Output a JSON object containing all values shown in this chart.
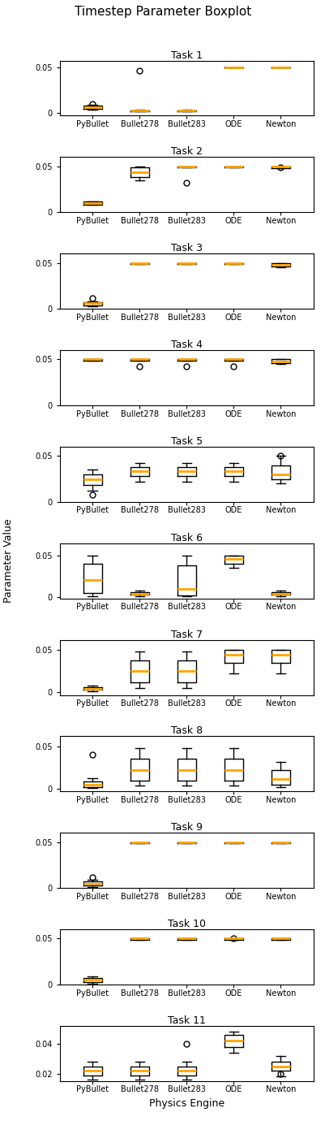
{
  "title": "Timestep Parameter Boxplot",
  "xlabel": "Physics Engine",
  "ylabel": "Parameter Value",
  "categories": [
    "PyBullet",
    "Bullet278",
    "Bullet283",
    "ODE",
    "Newton"
  ],
  "n_tasks": 11,
  "tasks": [
    {
      "name": "Task 1",
      "data": [
        {
          "q1": 0.005,
          "median": 0.006,
          "q3": 0.008,
          "whislo": 0.004,
          "whishi": 0.009,
          "fliers": [
            0.01
          ],
          "mean": null
        },
        {
          "q1": 0.002,
          "median": 0.003,
          "q3": 0.003,
          "whislo": 0.002,
          "whishi": 0.004,
          "fliers": [
            0.047
          ],
          "mean": null
        },
        {
          "q1": 0.002,
          "median": 0.003,
          "q3": 0.003,
          "whislo": 0.002,
          "whishi": 0.004,
          "fliers": [],
          "mean": null
        },
        {
          "q1": 0.05,
          "median": 0.05,
          "q3": 0.05,
          "whislo": 0.05,
          "whishi": 0.05,
          "fliers": [],
          "mean": null
        },
        {
          "q1": 0.05,
          "median": 0.05,
          "q3": 0.05,
          "whislo": 0.05,
          "whishi": 0.05,
          "fliers": [],
          "mean": null
        }
      ],
      "ylim": [
        -0.003,
        0.058
      ]
    },
    {
      "name": "Task 2",
      "data": [
        {
          "q1": 0.008,
          "median": 0.01,
          "q3": 0.012,
          "whislo": 0.008,
          "whishi": 0.012,
          "fliers": [],
          "mean": null
        },
        {
          "q1": 0.038,
          "median": 0.044,
          "q3": 0.049,
          "whislo": 0.035,
          "whishi": 0.05,
          "fliers": [],
          "mean": null
        },
        {
          "q1": 0.049,
          "median": 0.05,
          "q3": 0.05,
          "whislo": 0.049,
          "whishi": 0.05,
          "fliers": [
            0.032
          ],
          "mean": null
        },
        {
          "q1": 0.049,
          "median": 0.05,
          "q3": 0.05,
          "whislo": 0.049,
          "whishi": 0.05,
          "fliers": [],
          "mean": null
        },
        {
          "q1": 0.048,
          "median": 0.05,
          "q3": 0.05,
          "whislo": 0.048,
          "whishi": 0.05,
          "fliers": [
            0.049
          ],
          "mean": null
        }
      ],
      "ylim": [
        0.0,
        0.06
      ]
    },
    {
      "name": "Task 3",
      "data": [
        {
          "q1": 0.004,
          "median": 0.006,
          "q3": 0.007,
          "whislo": 0.003,
          "whishi": 0.008,
          "fliers": [
            0.012
          ],
          "mean": null
        },
        {
          "q1": 0.049,
          "median": 0.05,
          "q3": 0.05,
          "whislo": 0.049,
          "whishi": 0.05,
          "fliers": [],
          "mean": null
        },
        {
          "q1": 0.049,
          "median": 0.05,
          "q3": 0.05,
          "whislo": 0.049,
          "whishi": 0.05,
          "fliers": [],
          "mean": null
        },
        {
          "q1": 0.049,
          "median": 0.05,
          "q3": 0.05,
          "whislo": 0.049,
          "whishi": 0.05,
          "fliers": [],
          "mean": null
        },
        {
          "q1": 0.046,
          "median": 0.048,
          "q3": 0.05,
          "whislo": 0.045,
          "whishi": 0.05,
          "fliers": [],
          "mean": null
        }
      ],
      "ylim": [
        0.0,
        0.06
      ]
    },
    {
      "name": "Task 4",
      "data": [
        {
          "q1": 0.049,
          "median": 0.05,
          "q3": 0.05,
          "whislo": 0.049,
          "whishi": 0.05,
          "fliers": [],
          "mean": null
        },
        {
          "q1": 0.049,
          "median": 0.05,
          "q3": 0.05,
          "whislo": 0.049,
          "whishi": 0.05,
          "fliers": [
            0.042
          ],
          "mean": null
        },
        {
          "q1": 0.049,
          "median": 0.05,
          "q3": 0.05,
          "whislo": 0.049,
          "whishi": 0.05,
          "fliers": [
            0.042
          ],
          "mean": null
        },
        {
          "q1": 0.049,
          "median": 0.05,
          "q3": 0.05,
          "whislo": 0.049,
          "whishi": 0.05,
          "fliers": [
            0.042
          ],
          "mean": null
        },
        {
          "q1": 0.046,
          "median": 0.048,
          "q3": 0.05,
          "whislo": 0.045,
          "whishi": 0.05,
          "fliers": [],
          "mean": null
        }
      ],
      "ylim": [
        0.0,
        0.06
      ]
    },
    {
      "name": "Task 5",
      "data": [
        {
          "q1": 0.018,
          "median": 0.025,
          "q3": 0.03,
          "whislo": 0.012,
          "whishi": 0.035,
          "fliers": [
            0.008
          ],
          "mean": null
        },
        {
          "q1": 0.028,
          "median": 0.033,
          "q3": 0.038,
          "whislo": 0.022,
          "whishi": 0.042,
          "fliers": [],
          "mean": null
        },
        {
          "q1": 0.028,
          "median": 0.033,
          "q3": 0.038,
          "whislo": 0.022,
          "whishi": 0.042,
          "fliers": [],
          "mean": null
        },
        {
          "q1": 0.028,
          "median": 0.033,
          "q3": 0.038,
          "whislo": 0.022,
          "whishi": 0.042,
          "fliers": [],
          "mean": null
        },
        {
          "q1": 0.025,
          "median": 0.03,
          "q3": 0.04,
          "whislo": 0.02,
          "whishi": 0.05,
          "fliers": [
            0.05
          ],
          "mean": null
        }
      ],
      "ylim": [
        0.0,
        0.06
      ]
    },
    {
      "name": "Task 6",
      "data": [
        {
          "q1": 0.005,
          "median": 0.02,
          "q3": 0.04,
          "whislo": 0.001,
          "whishi": 0.05,
          "fliers": [],
          "mean": null
        },
        {
          "q1": 0.003,
          "median": 0.004,
          "q3": 0.006,
          "whislo": 0.001,
          "whishi": 0.008,
          "fliers": [],
          "mean": null
        },
        {
          "q1": 0.002,
          "median": 0.01,
          "q3": 0.038,
          "whislo": 0.001,
          "whishi": 0.05,
          "fliers": [],
          "mean": null
        },
        {
          "q1": 0.04,
          "median": 0.046,
          "q3": 0.05,
          "whislo": 0.035,
          "whishi": 0.05,
          "fliers": [],
          "mean": null
        },
        {
          "q1": 0.003,
          "median": 0.004,
          "q3": 0.006,
          "whislo": 0.001,
          "whishi": 0.008,
          "fliers": [],
          "mean": null
        }
      ],
      "ylim": [
        -0.002,
        0.065
      ]
    },
    {
      "name": "Task 7",
      "data": [
        {
          "q1": 0.003,
          "median": 0.004,
          "q3": 0.006,
          "whislo": 0.001,
          "whishi": 0.008,
          "fliers": [],
          "mean": null
        },
        {
          "q1": 0.012,
          "median": 0.025,
          "q3": 0.038,
          "whislo": 0.005,
          "whishi": 0.048,
          "fliers": [],
          "mean": null
        },
        {
          "q1": 0.012,
          "median": 0.025,
          "q3": 0.038,
          "whislo": 0.005,
          "whishi": 0.048,
          "fliers": [],
          "mean": null
        },
        {
          "q1": 0.035,
          "median": 0.044,
          "q3": 0.05,
          "whislo": 0.022,
          "whishi": 0.05,
          "fliers": [],
          "mean": null
        },
        {
          "q1": 0.035,
          "median": 0.044,
          "q3": 0.05,
          "whislo": 0.022,
          "whishi": 0.05,
          "fliers": [],
          "mean": null
        }
      ],
      "ylim": [
        -0.003,
        0.062
      ]
    },
    {
      "name": "Task 8",
      "data": [
        {
          "q1": 0.002,
          "median": 0.005,
          "q3": 0.009,
          "whislo": 0.001,
          "whishi": 0.013,
          "fliers": [
            0.04
          ],
          "mean": null
        },
        {
          "q1": 0.01,
          "median": 0.022,
          "q3": 0.036,
          "whislo": 0.004,
          "whishi": 0.048,
          "fliers": [],
          "mean": null
        },
        {
          "q1": 0.01,
          "median": 0.022,
          "q3": 0.036,
          "whislo": 0.004,
          "whishi": 0.048,
          "fliers": [],
          "mean": null
        },
        {
          "q1": 0.01,
          "median": 0.022,
          "q3": 0.036,
          "whislo": 0.004,
          "whishi": 0.048,
          "fliers": [],
          "mean": null
        },
        {
          "q1": 0.005,
          "median": 0.012,
          "q3": 0.022,
          "whislo": 0.002,
          "whishi": 0.032,
          "fliers": [],
          "mean": null
        }
      ],
      "ylim": [
        -0.003,
        0.062
      ]
    },
    {
      "name": "Task 9",
      "data": [
        {
          "q1": 0.003,
          "median": 0.005,
          "q3": 0.007,
          "whislo": 0.001,
          "whishi": 0.009,
          "fliers": [
            0.012
          ],
          "mean": null
        },
        {
          "q1": 0.049,
          "median": 0.05,
          "q3": 0.05,
          "whislo": 0.049,
          "whishi": 0.05,
          "fliers": [],
          "mean": null
        },
        {
          "q1": 0.049,
          "median": 0.05,
          "q3": 0.05,
          "whislo": 0.049,
          "whishi": 0.05,
          "fliers": [],
          "mean": null
        },
        {
          "q1": 0.049,
          "median": 0.05,
          "q3": 0.05,
          "whislo": 0.049,
          "whishi": 0.05,
          "fliers": [],
          "mean": null
        },
        {
          "q1": 0.049,
          "median": 0.05,
          "q3": 0.05,
          "whislo": 0.049,
          "whishi": 0.05,
          "fliers": [],
          "mean": null
        }
      ],
      "ylim": [
        0.0,
        0.06
      ]
    },
    {
      "name": "Task 10",
      "data": [
        {
          "q1": 0.003,
          "median": 0.005,
          "q3": 0.007,
          "whislo": 0.001,
          "whishi": 0.009,
          "fliers": [],
          "mean": null
        },
        {
          "q1": 0.049,
          "median": 0.05,
          "q3": 0.05,
          "whislo": 0.049,
          "whishi": 0.05,
          "fliers": [],
          "mean": null
        },
        {
          "q1": 0.049,
          "median": 0.05,
          "q3": 0.05,
          "whislo": 0.049,
          "whishi": 0.05,
          "fliers": [],
          "mean": null
        },
        {
          "q1": 0.049,
          "median": 0.05,
          "q3": 0.05,
          "whislo": 0.049,
          "whishi": 0.05,
          "fliers": [
            0.05
          ],
          "mean": null
        },
        {
          "q1": 0.049,
          "median": 0.05,
          "q3": 0.05,
          "whislo": 0.049,
          "whishi": 0.05,
          "fliers": [],
          "mean": null
        }
      ],
      "ylim": [
        0.0,
        0.06
      ]
    },
    {
      "name": "Task 11",
      "data": [
        {
          "q1": 0.019,
          "median": 0.022,
          "q3": 0.025,
          "whislo": 0.016,
          "whishi": 0.028,
          "fliers": [],
          "mean": null
        },
        {
          "q1": 0.019,
          "median": 0.022,
          "q3": 0.025,
          "whislo": 0.016,
          "whishi": 0.028,
          "fliers": [],
          "mean": null
        },
        {
          "q1": 0.019,
          "median": 0.022,
          "q3": 0.025,
          "whislo": 0.016,
          "whishi": 0.028,
          "fliers": [
            0.04
          ],
          "mean": null
        },
        {
          "q1": 0.038,
          "median": 0.042,
          "q3": 0.046,
          "whislo": 0.034,
          "whishi": 0.048,
          "fliers": [],
          "mean": null
        },
        {
          "q1": 0.022,
          "median": 0.025,
          "q3": 0.028,
          "whislo": 0.018,
          "whishi": 0.032,
          "fliers": [
            0.02
          ],
          "mean": null
        }
      ],
      "ylim": [
        0.015,
        0.052
      ]
    }
  ],
  "median_color": "orange",
  "box_color": "black",
  "whisker_color": "black",
  "flier_color": "black"
}
